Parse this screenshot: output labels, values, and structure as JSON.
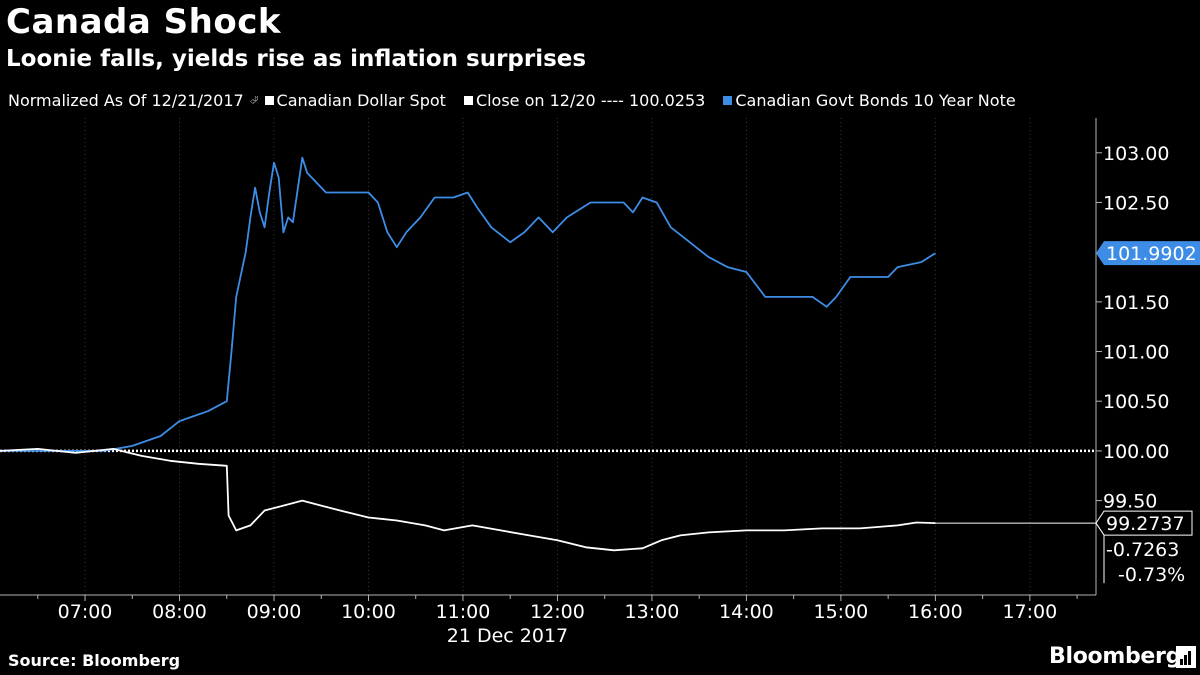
{
  "header": {
    "title": "Canada Shock",
    "subtitle": "Loonie falls, yields rise as inflation surprises"
  },
  "legend": {
    "normalized": "Normalized As Of 12/21/2017",
    "cad_label": "Canadian Dollar Spot",
    "close_label": "Close on 12/20 ---- 100.0253",
    "bond_label": "Canadian Govt Bonds 10 Year Note"
  },
  "footer": {
    "source": "Source: Bloomberg",
    "brand": "Bloomberg"
  },
  "colors": {
    "background": "#000000",
    "bond_series": "#3d8de6",
    "cad_series": "#ffffff",
    "axis": "#b4b4b4",
    "bond_badge": "#3d8de6"
  },
  "chart_data": {
    "type": "line",
    "title": "Canada Shock",
    "subtitle": "Loonie falls, yields rise as inflation surprises",
    "xlabel": "21 Dec 2017",
    "ylabel": "",
    "x_range_hours": [
      6.1,
      17.7
    ],
    "ylim": [
      98.55,
      103.35
    ],
    "x_ticks": [
      {
        "hour": 7,
        "label": "07:00"
      },
      {
        "hour": 8,
        "label": "08:00"
      },
      {
        "hour": 9,
        "label": "09:00"
      },
      {
        "hour": 10,
        "label": "10:00"
      },
      {
        "hour": 11,
        "label": "11:00"
      },
      {
        "hour": 12,
        "label": "12:00"
      },
      {
        "hour": 13,
        "label": "13:00"
      },
      {
        "hour": 14,
        "label": "14:00"
      },
      {
        "hour": 15,
        "label": "15:00"
      },
      {
        "hour": 16,
        "label": "16:00"
      },
      {
        "hour": 17,
        "label": "17:00"
      }
    ],
    "y_ticks": [
      {
        "value": 103.0,
        "label": "103.00"
      },
      {
        "value": 102.5,
        "label": "102.50"
      },
      {
        "value": 101.5,
        "label": "101.50"
      },
      {
        "value": 101.0,
        "label": "101.00"
      },
      {
        "value": 100.5,
        "label": "100.50"
      },
      {
        "value": 100.0,
        "label": "100.00"
      },
      {
        "value": 99.5,
        "label": "99.50"
      }
    ],
    "reference_line": {
      "value": 100.0,
      "label": "Close on 12/20",
      "style": "dotted"
    },
    "series": [
      {
        "name": "Canadian Govt Bonds 10 Year Note",
        "color": "#3d8de6",
        "last_value": "101.9902",
        "points": [
          [
            6.1,
            100.0
          ],
          [
            6.8,
            100.0
          ],
          [
            7.2,
            100.0
          ],
          [
            7.5,
            100.05
          ],
          [
            7.8,
            100.15
          ],
          [
            8.0,
            100.3
          ],
          [
            8.15,
            100.35
          ],
          [
            8.3,
            100.4
          ],
          [
            8.5,
            100.5
          ],
          [
            8.55,
            101.0
          ],
          [
            8.6,
            101.55
          ],
          [
            8.7,
            102.0
          ],
          [
            8.75,
            102.35
          ],
          [
            8.8,
            102.65
          ],
          [
            8.85,
            102.4
          ],
          [
            8.9,
            102.25
          ],
          [
            8.95,
            102.6
          ],
          [
            9.0,
            102.9
          ],
          [
            9.05,
            102.75
          ],
          [
            9.1,
            102.2
          ],
          [
            9.15,
            102.35
          ],
          [
            9.2,
            102.3
          ],
          [
            9.3,
            102.95
          ],
          [
            9.35,
            102.8
          ],
          [
            9.45,
            102.7
          ],
          [
            9.55,
            102.6
          ],
          [
            10.0,
            102.6
          ],
          [
            10.1,
            102.5
          ],
          [
            10.2,
            102.2
          ],
          [
            10.3,
            102.05
          ],
          [
            10.4,
            102.2
          ],
          [
            10.55,
            102.35
          ],
          [
            10.7,
            102.55
          ],
          [
            10.9,
            102.55
          ],
          [
            11.05,
            102.6
          ],
          [
            11.15,
            102.45
          ],
          [
            11.3,
            102.25
          ],
          [
            11.5,
            102.1
          ],
          [
            11.65,
            102.2
          ],
          [
            11.8,
            102.35
          ],
          [
            11.95,
            102.2
          ],
          [
            12.1,
            102.35
          ],
          [
            12.35,
            102.5
          ],
          [
            12.7,
            102.5
          ],
          [
            12.8,
            102.4
          ],
          [
            12.9,
            102.55
          ],
          [
            13.05,
            102.5
          ],
          [
            13.2,
            102.25
          ],
          [
            13.4,
            102.1
          ],
          [
            13.6,
            101.95
          ],
          [
            13.8,
            101.85
          ],
          [
            14.0,
            101.8
          ],
          [
            14.2,
            101.55
          ],
          [
            14.5,
            101.55
          ],
          [
            14.7,
            101.55
          ],
          [
            14.85,
            101.45
          ],
          [
            14.95,
            101.55
          ],
          [
            15.1,
            101.75
          ],
          [
            15.3,
            101.75
          ],
          [
            15.5,
            101.75
          ],
          [
            15.6,
            101.85
          ],
          [
            15.85,
            101.9
          ],
          [
            16.0,
            101.99
          ]
        ]
      },
      {
        "name": "Canadian Dollar Spot",
        "color": "#ffffff",
        "last_value": "99.2737",
        "change_abs": "-0.7263",
        "change_pct": "-0.73%",
        "points": [
          [
            6.1,
            100.0
          ],
          [
            6.5,
            100.02
          ],
          [
            6.9,
            99.98
          ],
          [
            7.3,
            100.02
          ],
          [
            7.6,
            99.95
          ],
          [
            7.9,
            99.9
          ],
          [
            8.2,
            99.87
          ],
          [
            8.5,
            99.85
          ],
          [
            8.52,
            99.35
          ],
          [
            8.6,
            99.2
          ],
          [
            8.75,
            99.25
          ],
          [
            8.9,
            99.4
          ],
          [
            9.1,
            99.45
          ],
          [
            9.3,
            99.5
          ],
          [
            9.5,
            99.45
          ],
          [
            9.7,
            99.4
          ],
          [
            10.0,
            99.33
          ],
          [
            10.3,
            99.3
          ],
          [
            10.6,
            99.25
          ],
          [
            10.8,
            99.2
          ],
          [
            11.1,
            99.25
          ],
          [
            11.4,
            99.2
          ],
          [
            11.7,
            99.15
          ],
          [
            12.0,
            99.1
          ],
          [
            12.3,
            99.03
          ],
          [
            12.6,
            99.0
          ],
          [
            12.9,
            99.02
          ],
          [
            13.1,
            99.1
          ],
          [
            13.3,
            99.15
          ],
          [
            13.6,
            99.18
          ],
          [
            14.0,
            99.2
          ],
          [
            14.4,
            99.2
          ],
          [
            14.8,
            99.22
          ],
          [
            15.2,
            99.22
          ],
          [
            15.6,
            99.25
          ],
          [
            15.8,
            99.28
          ],
          [
            16.0,
            99.2737
          ]
        ]
      }
    ]
  }
}
